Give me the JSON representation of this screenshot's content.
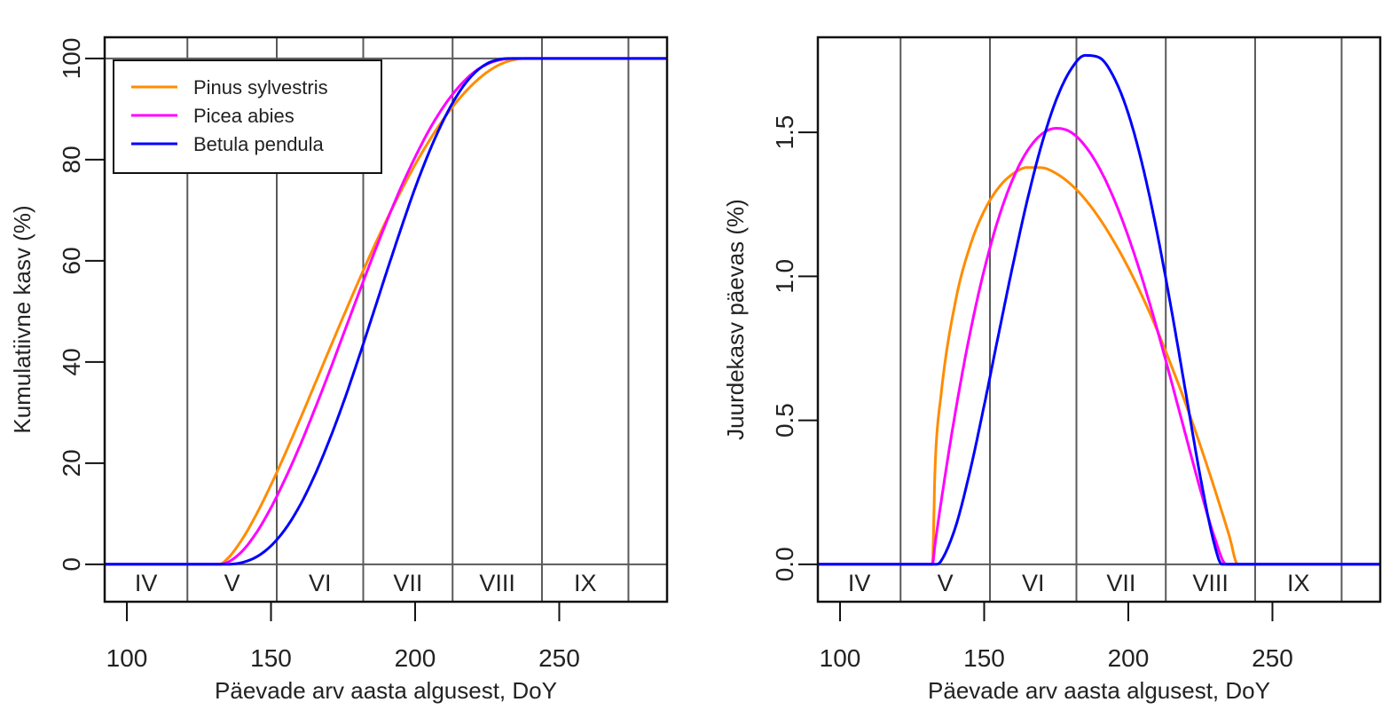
{
  "colors": {
    "orange": "#ff8c00",
    "magenta": "#ff00ff",
    "blue": "#0000ff",
    "grid": "#5a5a5a"
  },
  "chart_data": [
    {
      "type": "line",
      "xlabel": "Päevade arv aasta algusest, DoY",
      "ylabel": "Kumulatiivne kasv (%)",
      "xlim": [
        92.3,
        287.4
      ],
      "ylim": [
        -7.4,
        104.2
      ],
      "xticks": [
        "100",
        "150",
        "200",
        "250"
      ],
      "yticks": [
        "0",
        "20",
        "40",
        "60",
        "80",
        "100"
      ],
      "hlines": [
        0,
        100
      ],
      "month_boundaries": [
        121,
        152,
        182,
        213,
        244,
        274
      ],
      "month_labels": [
        "IV",
        "V",
        "VI",
        "VII",
        "VIII",
        "IX"
      ],
      "legend": "top-left",
      "series": [
        {
          "name": "Pinus sylvestris",
          "color": "#ff8c00",
          "x": [
            92,
            132,
            135,
            140,
            145,
            150,
            155,
            160,
            165,
            170,
            175,
            180,
            185,
            190,
            195,
            200,
            205,
            210,
            215,
            220,
            225,
            230,
            235,
            238,
            288
          ],
          "y": [
            0,
            0,
            1.17,
            4.95,
            9.95,
            15.71,
            21.98,
            28.56,
            35.32,
            42.12,
            48.87,
            55.48,
            61.88,
            67.97,
            73.7,
            79.02,
            83.84,
            88.14,
            91.85,
            94.91,
            97.31,
            98.98,
            99.85,
            100,
            100
          ]
        },
        {
          "name": "Picea abies",
          "color": "#ff00ff",
          "x": [
            92,
            132,
            135,
            140,
            145,
            150,
            155,
            160,
            165,
            170,
            175,
            180,
            185,
            190,
            195,
            200,
            205,
            210,
            215,
            220,
            225,
            230,
            234,
            288
          ],
          "y": [
            0,
            0,
            0.4,
            2.6,
            6.3,
            11.2,
            17.0,
            23.4,
            30.4,
            37.7,
            45.3,
            52.9,
            60.4,
            67.6,
            74.4,
            80.5,
            86.0,
            90.6,
            94.3,
            97.1,
            98.9,
            99.8,
            100,
            100
          ]
        },
        {
          "name": "Betula pendula",
          "color": "#0000ff",
          "x": [
            92,
            133.5,
            135,
            140,
            145,
            150,
            155,
            160,
            165,
            170,
            175,
            180,
            185,
            190,
            195,
            200,
            205,
            210,
            215,
            220,
            225,
            230,
            232.5,
            288
          ],
          "y": [
            0,
            0,
            0.01,
            0.36,
            1.48,
            3.65,
            7.0,
            11.6,
            17.4,
            24.2,
            31.8,
            40.1,
            48.8,
            57.6,
            66.2,
            74.4,
            81.7,
            88.0,
            93.1,
            96.8,
            99.0,
            99.9,
            100,
            100
          ]
        }
      ]
    },
    {
      "type": "line",
      "xlabel": "Päevade arv aasta algusest, DoY",
      "ylabel": "Juurdekasv päevas (%)",
      "xlim": [
        92.3,
        287.4
      ],
      "ylim": [
        -0.13,
        1.83
      ],
      "xticks": [
        "100",
        "150",
        "200",
        "250"
      ],
      "yticks": [
        "0.0",
        "0.5",
        "1.0",
        "1.5"
      ],
      "hlines": [
        0
      ],
      "month_boundaries": [
        121,
        152,
        182,
        213,
        244,
        274
      ],
      "month_labels": [
        "IV",
        "V",
        "VI",
        "VII",
        "VIII",
        "IX"
      ],
      "series": [
        {
          "color": "#ff8c00",
          "x": [
            92,
            132,
            133,
            135,
            140,
            145,
            150,
            155,
            160,
            165,
            170,
            175,
            180,
            185,
            190,
            195,
            200,
            205,
            210,
            215,
            220,
            225,
            230,
            235,
            238,
            288
          ],
          "y": [
            0,
            0,
            0.345,
            0.586,
            0.911,
            1.102,
            1.227,
            1.308,
            1.356,
            1.378,
            1.377,
            1.357,
            1.32,
            1.268,
            1.201,
            1.121,
            1.03,
            0.927,
            0.813,
            0.688,
            0.555,
            0.412,
            0.26,
            0.1,
            0,
            0
          ]
        },
        {
          "color": "#ff00ff",
          "x": [
            92,
            132,
            133,
            135,
            140,
            145,
            150,
            155,
            160,
            165,
            170,
            175,
            180,
            185,
            190,
            195,
            200,
            205,
            210,
            215,
            220,
            225,
            230,
            234,
            288
          ],
          "y": [
            0,
            0,
            0.073,
            0.213,
            0.528,
            0.798,
            1.022,
            1.202,
            1.339,
            1.436,
            1.494,
            1.514,
            1.501,
            1.453,
            1.375,
            1.269,
            1.138,
            0.986,
            0.816,
            0.633,
            0.445,
            0.259,
            0.091,
            0,
            0
          ]
        },
        {
          "color": "#0000ff",
          "x": [
            92,
            133.5,
            135,
            140,
            145,
            150,
            155,
            160,
            165,
            170,
            175,
            180,
            185,
            190,
            195,
            200,
            205,
            210,
            215,
            220,
            225,
            230,
            232.5,
            288
          ],
          "y": [
            0,
            0,
            0.011,
            0.128,
            0.32,
            0.552,
            0.799,
            1.041,
            1.266,
            1.46,
            1.613,
            1.717,
            1.767,
            1.759,
            1.691,
            1.565,
            1.382,
            1.151,
            0.882,
            0.592,
            0.303,
            0.064,
            0,
            0
          ]
        }
      ]
    }
  ]
}
